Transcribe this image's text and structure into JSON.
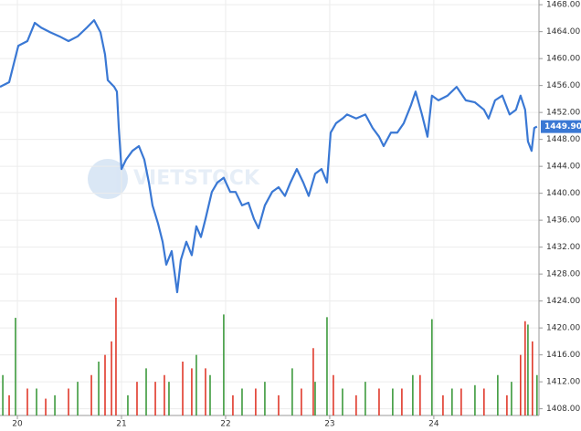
{
  "chart_data": {
    "type": "line",
    "watermark": "VIETSTOCK",
    "xlim": [
      19.833,
      25.01
    ],
    "ylim": [
      1407,
      1468.7
    ],
    "xticks": [
      20,
      21,
      22,
      23,
      24
    ],
    "yticks": [
      {
        "value": 1408,
        "label": "1408.00"
      },
      {
        "value": 1412,
        "label": "1412.00"
      },
      {
        "value": 1416,
        "label": "1416.00"
      },
      {
        "value": 1420,
        "label": "1420.00"
      },
      {
        "value": 1424,
        "label": "1424.00"
      },
      {
        "value": 1428,
        "label": "1428.00"
      },
      {
        "value": 1432,
        "label": "1432.00"
      },
      {
        "value": 1436,
        "label": "1436.00"
      },
      {
        "value": 1440,
        "label": "1440.00"
      },
      {
        "value": 1444,
        "label": "1444.00"
      },
      {
        "value": 1448,
        "label": "1448.00"
      },
      {
        "value": 1452,
        "label": "1452.00"
      },
      {
        "value": 1456,
        "label": "1456.00"
      },
      {
        "value": 1460,
        "label": "1460.00"
      },
      {
        "value": 1464,
        "label": "1464.00"
      },
      {
        "value": 1468,
        "label": "1468.00"
      }
    ],
    "grid": true,
    "last_price": {
      "value": 1449.9,
      "label": "1449.90"
    },
    "series": [
      {
        "type": "bar",
        "color": "#3d9a3d",
        "x": [
          19.86,
          19.982,
          20.184,
          20.36,
          20.579,
          20.781,
          21.061,
          21.237,
          21.456,
          21.719,
          21.851,
          21.982,
          22.158,
          22.377,
          22.64,
          22.86,
          22.974,
          23.123,
          23.342,
          23.605,
          23.798,
          23.982,
          24.175,
          24.395,
          24.614,
          24.746,
          24.904,
          24.991
        ],
        "values": [
          1413,
          1421.5,
          1411,
          1410,
          1412,
          1415,
          1410,
          1414,
          1412,
          1416,
          1413,
          1422,
          1411,
          1412,
          1414,
          1412,
          1421.6,
          1411,
          1412,
          1411,
          1413,
          1421.3,
          1411,
          1411.5,
          1413,
          1412,
          1420.5,
          1413
        ]
      },
      {
        "type": "bar",
        "color": "#e0392b",
        "x": [
          19.921,
          20.096,
          20.272,
          20.491,
          20.711,
          20.842,
          20.904,
          20.947,
          21.149,
          21.325,
          21.412,
          21.588,
          21.675,
          21.807,
          22.07,
          22.289,
          22.509,
          22.728,
          22.842,
          23.035,
          23.254,
          23.474,
          23.693,
          23.868,
          24.088,
          24.263,
          24.482,
          24.702,
          24.833,
          24.877,
          24.947
        ],
        "values": [
          1410,
          1411,
          1409.5,
          1411,
          1413,
          1416,
          1418,
          1424.5,
          1412,
          1412,
          1413,
          1415,
          1414,
          1414,
          1410,
          1411,
          1410,
          1411,
          1417,
          1413,
          1410,
          1411,
          1411,
          1413,
          1410,
          1411,
          1411,
          1410,
          1416,
          1421,
          1418
        ]
      },
      {
        "type": "line",
        "color": "#3a78d4",
        "x": [
          19.833,
          19.921,
          19.965,
          20.009,
          20.096,
          20.167,
          20.228,
          20.316,
          20.404,
          20.491,
          20.579,
          20.667,
          20.737,
          20.798,
          20.842,
          20.868,
          20.93,
          20.956,
          20.974,
          21.0,
          21.044,
          21.105,
          21.167,
          21.219,
          21.263,
          21.298,
          21.351,
          21.395,
          21.43,
          21.482,
          21.535,
          21.57,
          21.623,
          21.675,
          21.719,
          21.763,
          21.807,
          21.868,
          21.921,
          21.982,
          22.044,
          22.096,
          22.158,
          22.219,
          22.272,
          22.316,
          22.377,
          22.447,
          22.509,
          22.57,
          22.623,
          22.684,
          22.746,
          22.798,
          22.86,
          22.921,
          22.974,
          23.009,
          23.061,
          23.123,
          23.167,
          23.254,
          23.342,
          23.412,
          23.474,
          23.518,
          23.588,
          23.649,
          23.711,
          23.781,
          23.825,
          23.886,
          23.939,
          23.982,
          24.044,
          24.132,
          24.219,
          24.307,
          24.395,
          24.482,
          24.526,
          24.588,
          24.658,
          24.728,
          24.789,
          24.833,
          24.877,
          24.904,
          24.939,
          24.965,
          24.991
        ],
        "values": [
          1455.8,
          1456.5,
          1459.2,
          1461.9,
          1462.6,
          1465.3,
          1464.6,
          1463.9,
          1463.3,
          1462.6,
          1463.3,
          1464.6,
          1465.7,
          1463.9,
          1460.6,
          1456.8,
          1455.8,
          1455.1,
          1449.7,
          1443.6,
          1445.0,
          1446.3,
          1447.0,
          1445.0,
          1441.6,
          1438.2,
          1435.5,
          1432.8,
          1429.4,
          1431.4,
          1425.3,
          1430.1,
          1432.8,
          1430.8,
          1435.1,
          1433.5,
          1436.2,
          1440.2,
          1441.6,
          1442.3,
          1440.2,
          1440.2,
          1438.2,
          1438.6,
          1436.2,
          1434.8,
          1438.2,
          1440.2,
          1440.9,
          1439.6,
          1441.6,
          1443.6,
          1441.6,
          1439.6,
          1442.9,
          1443.6,
          1441.6,
          1449.0,
          1450.4,
          1451.1,
          1451.7,
          1451.1,
          1451.7,
          1449.7,
          1448.4,
          1447.0,
          1449.0,
          1449.0,
          1450.4,
          1453.1,
          1455.1,
          1451.7,
          1448.4,
          1454.5,
          1453.8,
          1454.5,
          1455.8,
          1453.8,
          1453.5,
          1452.4,
          1451.1,
          1453.8,
          1454.5,
          1451.7,
          1452.4,
          1454.5,
          1452.4,
          1447.7,
          1446.3,
          1449.7,
          1449.9
        ]
      }
    ]
  }
}
